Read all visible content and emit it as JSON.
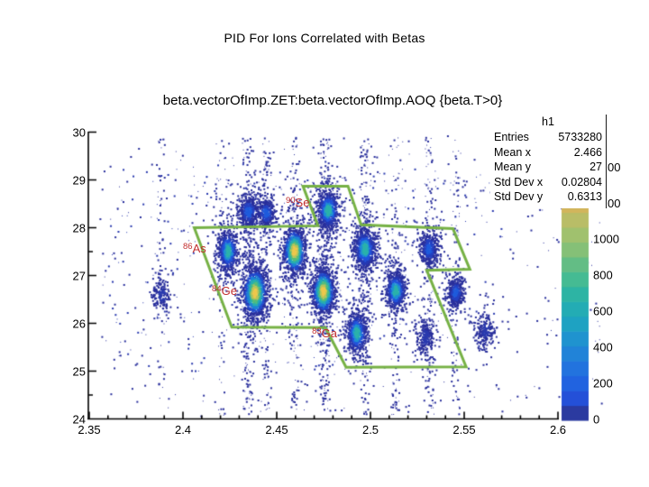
{
  "header": {
    "title": "PID For Ions Correlated with Betas"
  },
  "stats_box": {
    "title": "h1",
    "rows": [
      {
        "label": "Entries",
        "value": "5733280"
      },
      {
        "label": "Mean x",
        "value": "2.466"
      },
      {
        "label": "Mean y",
        "value": "27"
      },
      {
        "label": "Std Dev x",
        "value": "0.02804"
      },
      {
        "label": "Std Dev y",
        "value": "0.6313"
      }
    ]
  },
  "colorbar": {
    "tick_labels": [
      "0",
      "200",
      "400",
      "600",
      "800",
      "1000"
    ],
    "tick_values": [
      0,
      200,
      400,
      600,
      800,
      1000
    ],
    "hidden_tick_fragments": [
      {
        "text": "00",
        "value": 1400
      },
      {
        "text": "00",
        "value": 1200
      }
    ],
    "zmin": 0,
    "zmax": 1400,
    "palette": [
      "#2b3aa0",
      "#2450d8",
      "#2163e0",
      "#2273de",
      "#2183d8",
      "#1f93cf",
      "#1ea2c2",
      "#23acb4",
      "#2db4a4",
      "#45bb93",
      "#63bd85",
      "#85c077",
      "#a0c16e",
      "#b9bd67",
      "#d2b55c",
      "#d8bc58",
      "#dcc258"
    ]
  },
  "chart_data": {
    "type": "heatmap",
    "title": "beta.vectorOfImp.ZET:beta.vectorOfImp.AOQ {beta.T>0}",
    "xlabel": "",
    "ylabel": "",
    "xlim": [
      2.35,
      2.627
    ],
    "ylim": [
      24,
      30
    ],
    "x_tick_values": [
      2.35,
      2.4,
      2.45,
      2.5,
      2.55,
      2.6
    ],
    "x_tick_labels": [
      "2.35",
      "2.4",
      "2.45",
      "2.5",
      "2.55",
      "2.6"
    ],
    "y_tick_values": [
      24,
      25,
      26,
      27,
      28,
      29,
      30
    ],
    "y_tick_labels": [
      "24",
      "25",
      "26",
      "27",
      "28",
      "29",
      "30"
    ],
    "x_minor_step": 0.01,
    "y_minor_step": 0.5,
    "grid": false,
    "legend": "none",
    "clusters": [
      {
        "id": "84Ge",
        "isotope": "84Ge",
        "x": 2.438,
        "y": 26.66,
        "peak": 1350,
        "sx": 6.5,
        "sy": 13,
        "n": 1000,
        "tier": 3
      },
      {
        "id": "86Se-col",
        "x": 2.4745,
        "y": 26.68,
        "peak": 1200,
        "sx": 6.0,
        "sy": 12,
        "n": 850,
        "tier": 3
      },
      {
        "id": "88As-col",
        "x": 2.459,
        "y": 27.53,
        "peak": 1150,
        "sx": 6.0,
        "sy": 12,
        "n": 800,
        "tier": 3
      },
      {
        "id": "row27-c3",
        "x": 2.4966,
        "y": 27.57,
        "peak": 800,
        "sx": 6.0,
        "sy": 11,
        "n": 650,
        "tier": 2
      },
      {
        "id": "90Se",
        "isotope": "90Se",
        "x": 2.477,
        "y": 28.38,
        "peak": 650,
        "sx": 6.0,
        "sy": 10,
        "n": 550,
        "tier": 2
      },
      {
        "id": "86As",
        "isotope": "86As",
        "x": 2.4236,
        "y": 27.52,
        "peak": 600,
        "sx": 5.5,
        "sy": 11,
        "n": 520,
        "tier": 2
      },
      {
        "id": "row26-c3",
        "x": 2.513,
        "y": 26.7,
        "peak": 650,
        "sx": 5.5,
        "sy": 10,
        "n": 520,
        "tier": 2
      },
      {
        "id": "83Ga",
        "isotope": "83Ga",
        "x": 2.4923,
        "y": 25.81,
        "peak": 550,
        "sx": 5.5,
        "sy": 11,
        "n": 500,
        "tier": 2
      },
      {
        "id": "top-a1",
        "x": 2.4346,
        "y": 28.35,
        "peak": 350,
        "sx": 5.5,
        "sy": 9,
        "n": 330,
        "tier": 1
      },
      {
        "id": "top-a2",
        "x": 2.4438,
        "y": 28.32,
        "peak": 300,
        "sx": 5.0,
        "sy": 8,
        "n": 270,
        "tier": 1
      },
      {
        "id": "row27-c4",
        "x": 2.5308,
        "y": 27.58,
        "peak": 400,
        "sx": 5.0,
        "sy": 9,
        "n": 330,
        "tier": 1
      },
      {
        "id": "row26-c4",
        "x": 2.545,
        "y": 26.66,
        "peak": 350,
        "sx": 4.5,
        "sy": 8,
        "n": 300,
        "tier": 1
      },
      {
        "id": "row25-c2",
        "x": 2.529,
        "y": 25.73,
        "peak": 150,
        "sx": 5.0,
        "sy": 9,
        "n": 200,
        "tier": 0
      },
      {
        "id": "row25-c3",
        "x": 2.561,
        "y": 25.86,
        "peak": 120,
        "sx": 5.0,
        "sy": 9,
        "n": 160,
        "tier": 0
      },
      {
        "id": "left-sparse",
        "x": 2.388,
        "y": 26.6,
        "peak": 100,
        "sx": 5.0,
        "sy": 8,
        "n": 140,
        "tier": 0
      }
    ],
    "stripes": [
      {
        "x": 2.4346,
        "n": 150
      },
      {
        "x": 2.4438,
        "n": 150
      },
      {
        "x": 2.459,
        "n": 130
      },
      {
        "x": 2.4745,
        "n": 170
      },
      {
        "x": 2.477,
        "n": 80
      },
      {
        "x": 2.497,
        "n": 160
      },
      {
        "x": 2.513,
        "n": 110
      },
      {
        "x": 2.531,
        "n": 130
      },
      {
        "x": 2.545,
        "n": 90
      },
      {
        "x": 2.42,
        "n": 60
      },
      {
        "x": 2.388,
        "n": 50
      }
    ],
    "background_noise": {
      "n_uniform": 450,
      "n_band": 280
    },
    "cut_polygon": [
      [
        2.406,
        28.0
      ],
      [
        2.472,
        28.04
      ],
      [
        2.464,
        28.87
      ],
      [
        2.488,
        28.87
      ],
      [
        2.495,
        28.06
      ],
      [
        2.544,
        27.98
      ],
      [
        2.553,
        27.13
      ],
      [
        2.53,
        27.11
      ],
      [
        2.551,
        25.09
      ],
      [
        2.487,
        25.08
      ],
      [
        2.476,
        25.91
      ],
      [
        2.426,
        25.92
      ]
    ],
    "isotope_labels": [
      {
        "mass": "90",
        "element": "Se",
        "x": 2.4548,
        "y": 28.5
      },
      {
        "mass": "86",
        "element": "As",
        "x": 2.4,
        "y": 27.54
      },
      {
        "mass": "84",
        "element": "Ge",
        "x": 2.4154,
        "y": 26.65
      },
      {
        "mass": "83",
        "element": "Ga",
        "x": 2.4688,
        "y": 25.76
      }
    ],
    "colors": {
      "dot_navy": "#292f9c",
      "dot_navy2": "#2a3aae",
      "polygon": "#76b145",
      "isotope_label": "#c22f2f",
      "axis": "#000000",
      "tier3": [
        "#eec84d",
        "#b7c45c",
        "#55bd7c",
        "#27afb0",
        "#1e83d6",
        "#2249cd"
      ],
      "tier2": [
        "#2cb2ab",
        "#1f90d3",
        "#2153dc",
        "#2639b2"
      ],
      "tier1": [
        "#1f5cdc",
        "#2441c2"
      ]
    }
  }
}
